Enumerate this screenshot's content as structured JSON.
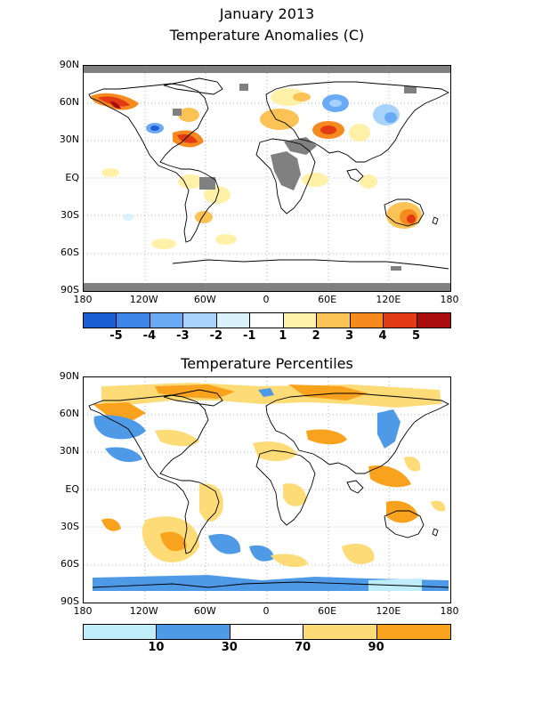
{
  "figure": {
    "title": "January 2013"
  },
  "panel_top": {
    "title": "Temperature Anomalies (C)",
    "lat_ticks": [
      "90N",
      "60N",
      "30N",
      "EQ",
      "30S",
      "60S",
      "90S"
    ],
    "lon_ticks": [
      "180",
      "120W",
      "60W",
      "0",
      "60E",
      "120E",
      "180"
    ],
    "colorbar": {
      "colors": [
        "#1a5fd4",
        "#3d86e8",
        "#6aaaf5",
        "#a6d2fb",
        "#d9f2fc",
        "#ffffff",
        "#fff1a8",
        "#fbc256",
        "#f68a1e",
        "#e23b13",
        "#a90c0c"
      ],
      "labels": [
        "-5",
        "-4",
        "-3",
        "-2",
        "-1",
        "1",
        "2",
        "3",
        "4",
        "5"
      ]
    },
    "missing_color": "#808080"
  },
  "panel_bottom": {
    "title": "Temperature Percentiles",
    "lat_ticks": [
      "90N",
      "60N",
      "30N",
      "EQ",
      "30S",
      "60S",
      "90S"
    ],
    "lon_ticks": [
      "180",
      "120W",
      "60W",
      "0",
      "60E",
      "120E",
      "180"
    ],
    "colorbar": {
      "colors": [
        "#bfeefa",
        "#4f9ae6",
        "#ffffff",
        "#fddc78",
        "#f9a21e"
      ],
      "labels": [
        "10",
        "30",
        "70",
        "90"
      ]
    }
  }
}
